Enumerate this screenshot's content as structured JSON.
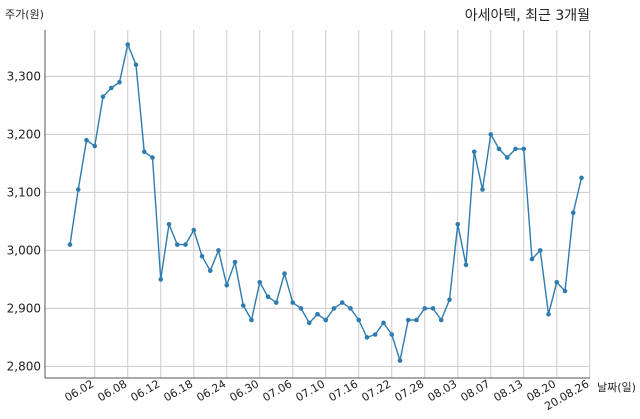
{
  "chart_data": {
    "type": "line",
    "title": "아세아텍, 최근 3개월",
    "ylabel": "주가(원)",
    "xlabel": "날짜(일)",
    "ylim": [
      2780,
      3380
    ],
    "yticks": [
      2800,
      2900,
      3000,
      3100,
      3200,
      3300
    ],
    "ytick_labels": [
      "2,800",
      "2,900",
      "3,000",
      "3,100",
      "3,200",
      "3,300"
    ],
    "xtick_labels": [
      "06.02",
      "06.08",
      "06.12",
      "06.18",
      "06.24",
      "06.30",
      "07.06",
      "07.10",
      "07.16",
      "07.22",
      "07.28",
      "08.03",
      "08.07",
      "08.13",
      "08.20",
      "20.08.26"
    ],
    "xtick_index": [
      3,
      7,
      11,
      15,
      19,
      23,
      27,
      31,
      35,
      39,
      43,
      47,
      51,
      55,
      59,
      63
    ],
    "grid": true,
    "color": "#2e7bb0",
    "series": [
      {
        "values": [
          3010,
          3105,
          3190,
          3180,
          3265,
          3280,
          3290,
          3355,
          3320,
          3170,
          3160,
          2950,
          3045,
          3010,
          3010,
          3035,
          2990,
          2965,
          3000,
          2940,
          2980,
          2905,
          2880,
          2945,
          2920,
          2910,
          2960,
          2910,
          2900,
          2875,
          2890,
          2880,
          2900,
          2910,
          2900,
          2880,
          2850,
          2855,
          2875,
          2855,
          2810,
          2880,
          2880,
          2900,
          2900,
          2880,
          2915,
          3045,
          2975,
          3170,
          3105,
          3200,
          3175,
          3160,
          3175,
          3175,
          2985,
          3000,
          2890,
          2945,
          2930,
          3065,
          3125
        ]
      }
    ]
  }
}
